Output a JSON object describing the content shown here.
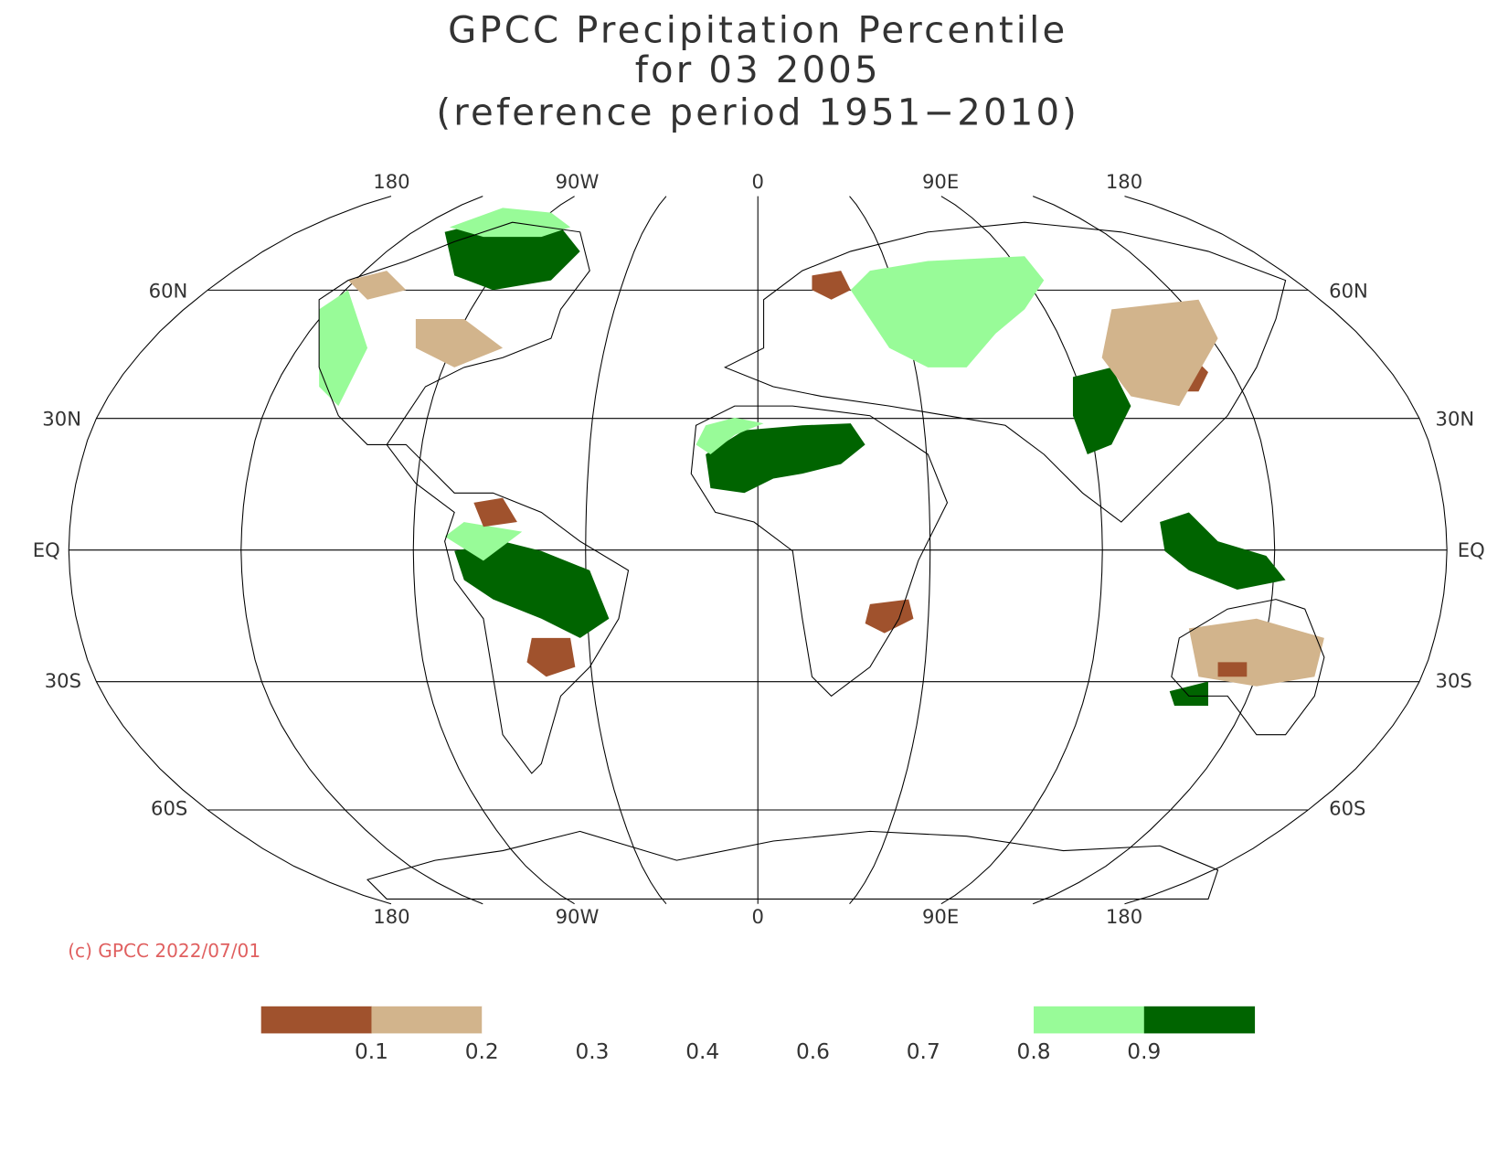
{
  "title": [
    "GPCC Precipitation Percentile",
    "for 03 2005",
    "(reference period 1951−2010)"
  ],
  "lon_labels_top": [
    "180",
    "90W",
    "0",
    "90E",
    "180"
  ],
  "lon_labels_bottom": [
    "180",
    "90W",
    "0",
    "90E",
    "180"
  ],
  "lat_labels_left": [
    "60N",
    "30N",
    "EQ",
    "30S",
    "60S"
  ],
  "lat_labels_right": [
    "60N",
    "30N",
    "EQ",
    "30S",
    "60S"
  ],
  "credit": "(c) GPCC 2022/07/01",
  "legend": {
    "colors": [
      "#a0522d",
      "#d2b48c",
      "#ffffff",
      "#ffffff",
      "#ffffff",
      "#ffffff",
      "#ffffff",
      "#98fb98",
      "#006400"
    ],
    "ticks": [
      0.1,
      0.2,
      0.3,
      0.4,
      0.6,
      0.7,
      0.8,
      0.9
    ]
  }
}
